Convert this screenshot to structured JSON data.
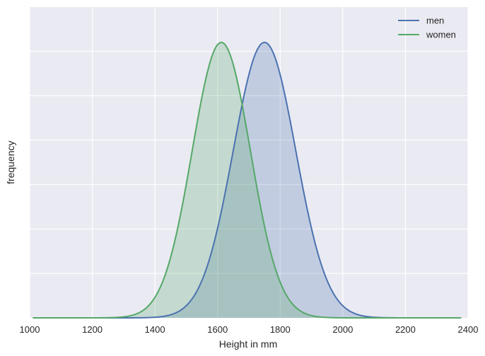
{
  "chart_data": {
    "type": "area",
    "xlabel": "Height in mm",
    "ylabel": "frequency",
    "xlim": [
      1000,
      2400
    ],
    "x_ticks": [
      "1000",
      "1200",
      "1400",
      "1600",
      "1800",
      "2000",
      "2200",
      "2400"
    ],
    "y_ticks_labeled": false,
    "grid": true,
    "legend_position": "top-right",
    "background": "#EAEAF2",
    "series": [
      {
        "name": "men",
        "distribution": "normal",
        "mean": 1750,
        "std": 100,
        "x_range": [
          1010,
          2380
        ],
        "color": "#4C72B0",
        "fill_opacity": 0.25
      },
      {
        "name": "women",
        "distribution": "normal",
        "mean": 1612,
        "std": 93,
        "x_range": [
          1010,
          2380
        ],
        "color": "#55A868",
        "fill_opacity": 0.25
      }
    ]
  }
}
